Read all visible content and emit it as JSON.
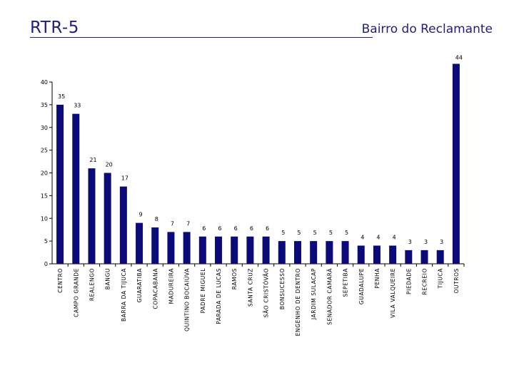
{
  "header": {
    "title": "RTR-5",
    "subtitle": "Bairro do Reclamante"
  },
  "colors": {
    "bar": "#0a0a78",
    "title": "#1f1f7a",
    "axis": "#000000"
  },
  "chart_data": {
    "type": "bar",
    "title": "",
    "xlabel": "",
    "ylabel": "",
    "ylim": [
      0,
      40
    ],
    "yticks": [
      0,
      5,
      10,
      15,
      20,
      25,
      30,
      35,
      40
    ],
    "grid": false,
    "legend": "none",
    "categories": [
      "CENTRO",
      "CAMPO GRANDE",
      "REALENGO",
      "BANGU",
      "BARRA DA TIJUCA",
      "GUARATIBA",
      "COPACABANA",
      "MADUREIRA",
      "QUINTINO BOCAIÚVA",
      "PADRE MIGUEL",
      "PARADA DE LUCAS",
      "RAMOS",
      "SANTA CRUZ",
      "SÃO CRISTÓVÃO",
      "BONSUCESSO",
      "ENGENHO DE DENTRO",
      "JARDIM SULACAP",
      "SENADOR CAMARÁ",
      "SEPETIBA",
      "GUADALUPE",
      "PENHA",
      "VILA VALQUEIRE",
      "PIEDADE",
      "RECREIO",
      "TIJUCA",
      "OUTROS"
    ],
    "values": [
      35,
      33,
      21,
      20,
      17,
      9,
      8,
      7,
      7,
      6,
      6,
      6,
      6,
      6,
      5,
      5,
      5,
      5,
      5,
      4,
      4,
      4,
      3,
      3,
      3,
      44
    ],
    "ytick_labels": [
      "0",
      "5",
      "10",
      "15",
      "20",
      "25",
      "30",
      "35",
      "40"
    ],
    "value_labels": [
      "35",
      "33",
      "21",
      "20",
      "17",
      "9",
      "8",
      "7",
      "7",
      "6",
      "6",
      "6",
      "6",
      "6",
      "5",
      "5",
      "5",
      "5",
      "5",
      "4",
      "4",
      "4",
      "3",
      "3",
      "3",
      "44"
    ]
  }
}
